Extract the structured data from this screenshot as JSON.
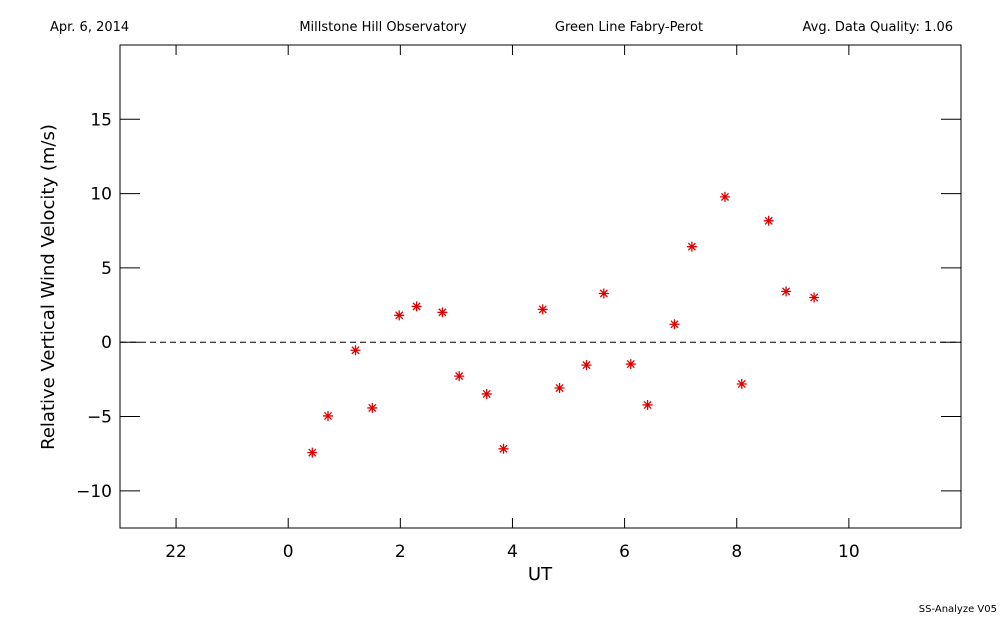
{
  "chart_data": {
    "type": "scatter",
    "header": [
      "Apr. 6, 2014",
      "Millstone Hill Observatory",
      "Green Line Fabry-Perot",
      "Avg. Data Quality: 1.06"
    ],
    "footer": "SS-Analyze V05",
    "x_label": "UT",
    "y_label": "Relative Vertical Wind Velocity (m/s)",
    "xlim": [
      -3,
      12
    ],
    "xticks": [
      {
        "value": -2,
        "label": "22"
      },
      0,
      2,
      4,
      6,
      8,
      10
    ],
    "ylim": [
      -12.5,
      20
    ],
    "yticks": [
      {
        "value": -10,
        "label": "−10"
      },
      {
        "value": -5,
        "label": "−5"
      },
      0,
      5,
      10,
      15
    ],
    "reference_line": 0,
    "color": "#e00000",
    "x": [
      0.43,
      0.71,
      1.2,
      1.5,
      1.98,
      2.29,
      2.75,
      3.05,
      3.54,
      3.84,
      4.54,
      4.84,
      5.32,
      5.63,
      6.11,
      6.41,
      6.89,
      7.2,
      7.79,
      8.09,
      8.57,
      8.88,
      9.38
    ],
    "values": [
      -7.43,
      -4.96,
      -0.54,
      -4.42,
      1.81,
      2.41,
      2.01,
      -2.28,
      -3.48,
      -7.17,
      2.21,
      -3.08,
      -1.54,
      3.28,
      -1.47,
      -4.22,
      1.21,
      6.43,
      9.78,
      -2.81,
      8.17,
      3.42,
      3.01
    ]
  }
}
